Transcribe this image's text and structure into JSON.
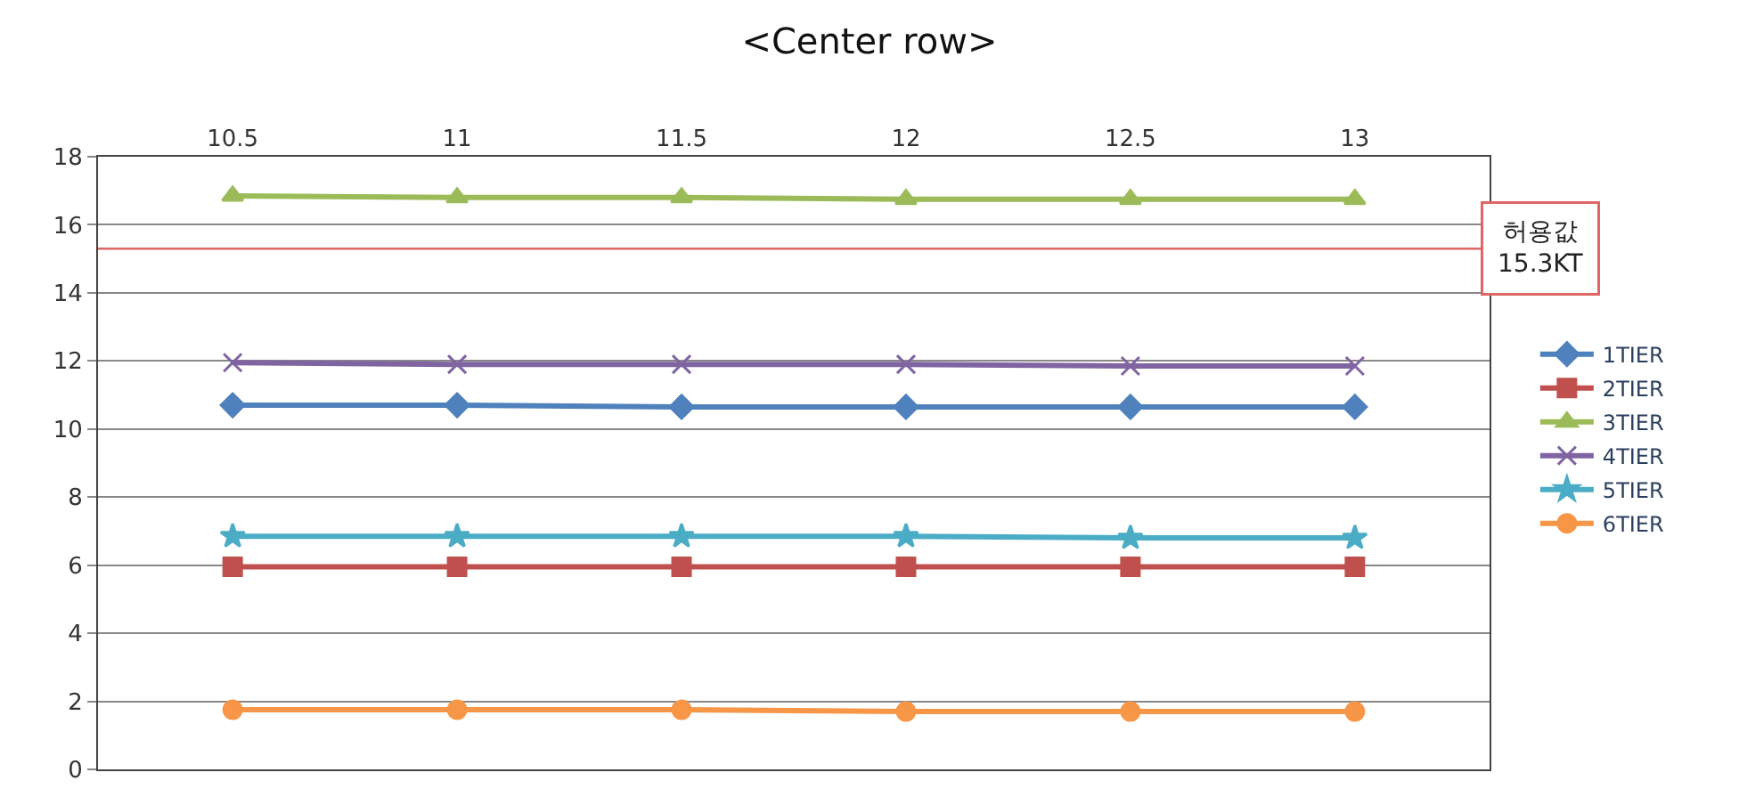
{
  "chart_data": {
    "type": "line",
    "title": "<Center row>",
    "categories": [
      "10.5",
      "11",
      "11.5",
      "12",
      "12.5",
      "13"
    ],
    "series": [
      {
        "name": "1TIER",
        "color": "#4f81bd",
        "marker": "diamond",
        "values": [
          10.7,
          10.7,
          10.65,
          10.65,
          10.65,
          10.65
        ]
      },
      {
        "name": "2TIER",
        "color": "#c0504d",
        "marker": "square",
        "values": [
          5.95,
          5.95,
          5.95,
          5.95,
          5.95,
          5.95
        ]
      },
      {
        "name": "3TIER",
        "color": "#9bbb59",
        "marker": "triangle",
        "values": [
          16.85,
          16.8,
          16.8,
          16.75,
          16.75,
          16.75
        ]
      },
      {
        "name": "4TIER",
        "color": "#8064a2",
        "marker": "cross",
        "values": [
          11.95,
          11.9,
          11.9,
          11.9,
          11.85,
          11.85
        ]
      },
      {
        "name": "5TIER",
        "color": "#4bacc6",
        "marker": "star",
        "values": [
          6.85,
          6.85,
          6.85,
          6.85,
          6.8,
          6.8
        ]
      },
      {
        "name": "6TIER",
        "color": "#f79646",
        "marker": "circle",
        "values": [
          1.75,
          1.75,
          1.75,
          1.7,
          1.7,
          1.7
        ]
      }
    ],
    "ylim": [
      0,
      18
    ],
    "yticks": [
      0,
      2,
      4,
      6,
      8,
      10,
      12,
      14,
      16,
      18
    ],
    "ref_lines": [
      {
        "axis": "y",
        "value": 15.3,
        "label": "허용값\n15.3KT",
        "color": "#e06666"
      }
    ],
    "grid": "y",
    "legend": "right"
  }
}
